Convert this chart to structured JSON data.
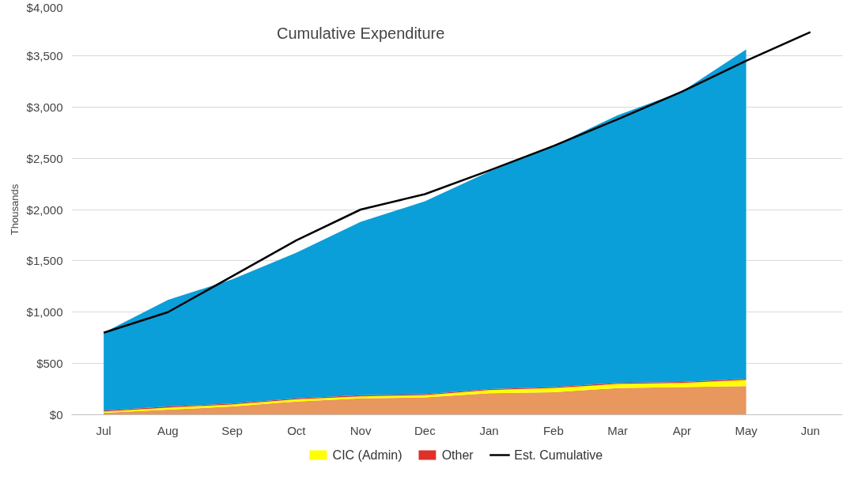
{
  "chart_data": {
    "type": "area",
    "stacked": true,
    "title": "Cumulative Expenditure",
    "ylabel": "Thousands",
    "categories": [
      "Jul",
      "Aug",
      "Sep",
      "Oct",
      "Nov",
      "Dec",
      "Jan",
      "Feb",
      "Mar",
      "Apr",
      "May",
      "Jun"
    ],
    "ylim": [
      0,
      4000
    ],
    "yticks": [
      {
        "value": 0,
        "label": "$0"
      },
      {
        "value": 500,
        "label": "$500"
      },
      {
        "value": 1000,
        "label": "$1,000"
      },
      {
        "value": 1500,
        "label": "$1,500"
      },
      {
        "value": 2000,
        "label": "$2,000"
      },
      {
        "value": 2500,
        "label": "$2,500"
      },
      {
        "value": 3000,
        "label": "$3,000"
      },
      {
        "value": 3500,
        "label": "$3,500"
      },
      {
        "value": 4000,
        "label": "$4,000"
      }
    ],
    "grid": "y",
    "legend": "bottom",
    "series": [
      {
        "color": "#e8975e",
        "values": [
          20,
          50,
          80,
          130,
          160,
          170,
          210,
          220,
          260,
          270,
          280,
          null
        ]
      },
      {
        "name": "CIC (Admin)",
        "color": "#ffff00",
        "values": [
          10,
          20,
          20,
          20,
          20,
          20,
          30,
          40,
          40,
          40,
          60,
          null
        ]
      },
      {
        "name": "Other",
        "color": "#e0302a",
        "values": [
          10,
          10,
          10,
          10,
          10,
          10,
          10,
          10,
          10,
          10,
          10,
          null
        ]
      },
      {
        "color": "#0a9fd8",
        "values": [
          760,
          1040,
          1210,
          1420,
          1690,
          1880,
          2120,
          2350,
          2610,
          2830,
          3210,
          null
        ]
      },
      {
        "name": "Est. Cumulative",
        "type": "line",
        "color": "#000000",
        "values": [
          800,
          1000,
          1350,
          1700,
          2000,
          2150,
          2380,
          2620,
          2880,
          3150,
          3450,
          3730
        ]
      }
    ]
  }
}
